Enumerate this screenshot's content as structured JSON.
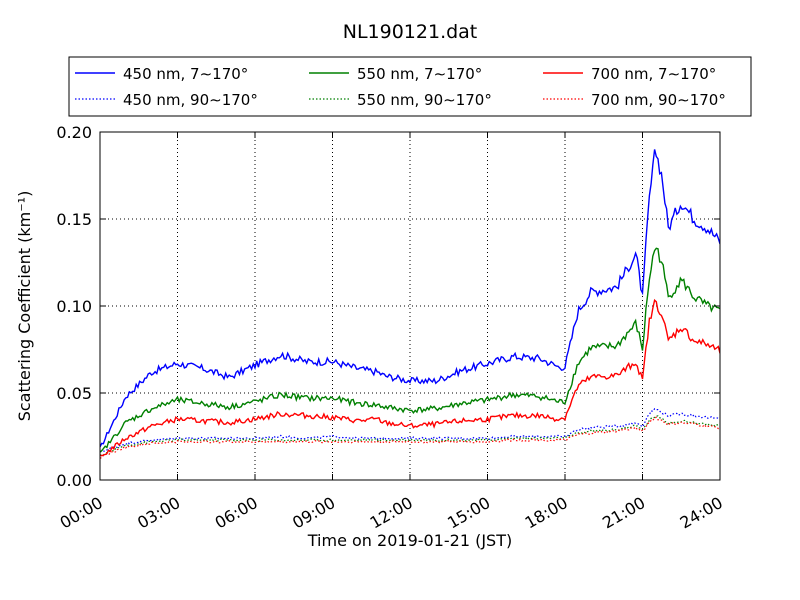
{
  "chart_data": {
    "type": "line",
    "title": "NL190121.dat",
    "xlabel": "Time on 2019-01-21 (JST)",
    "ylabel": "Scattering Coefficient (km⁻¹)",
    "x_ticks": [
      "00:00",
      "03:00",
      "06:00",
      "09:00",
      "12:00",
      "15:00",
      "18:00",
      "21:00",
      "24:00"
    ],
    "y_ticks": [
      "0.00",
      "0.05",
      "0.10",
      "0.15",
      "0.20"
    ],
    "xlim": [
      "00:00",
      "24:00"
    ],
    "ylim": [
      0.0,
      0.2
    ],
    "grid": true,
    "legend_position": "top",
    "x": [
      "00:00",
      "01:00",
      "02:00",
      "03:00",
      "04:00",
      "05:00",
      "06:00",
      "07:00",
      "08:00",
      "09:00",
      "10:00",
      "10:45",
      "11:00",
      "12:00",
      "13:00",
      "14:00",
      "15:00",
      "16:00",
      "17:00",
      "17:45",
      "18:00",
      "18:30",
      "19:00",
      "20:00",
      "20:45",
      "21:00",
      "21:15",
      "21:30",
      "21:45",
      "22:00",
      "22:30",
      "23:00",
      "23:30",
      "24:00"
    ],
    "series": [
      {
        "name": "450 nm, 7∼170°",
        "color": "#0000ff",
        "style": "solid",
        "values": [
          0.018,
          0.048,
          0.062,
          0.067,
          0.064,
          0.059,
          0.066,
          0.072,
          0.068,
          0.068,
          0.064,
          0.062,
          0.06,
          0.057,
          0.057,
          0.063,
          0.067,
          0.071,
          0.07,
          0.065,
          0.065,
          0.097,
          0.108,
          0.111,
          0.13,
          0.105,
          0.16,
          0.19,
          0.175,
          0.145,
          0.16,
          0.15,
          0.145,
          0.137
        ]
      },
      {
        "name": "450 nm, 90∼170°",
        "color": "#0000ff",
        "style": "dotted",
        "values": [
          0.016,
          0.021,
          0.023,
          0.024,
          0.024,
          0.024,
          0.024,
          0.025,
          0.024,
          0.025,
          0.024,
          0.024,
          0.024,
          0.024,
          0.024,
          0.024,
          0.024,
          0.025,
          0.025,
          0.025,
          0.025,
          0.029,
          0.03,
          0.031,
          0.033,
          0.031,
          0.038,
          0.041,
          0.039,
          0.037,
          0.038,
          0.037,
          0.036,
          0.035
        ]
      },
      {
        "name": "550 nm, 7∼170°",
        "color": "#008000",
        "style": "solid",
        "values": [
          0.015,
          0.033,
          0.041,
          0.046,
          0.044,
          0.042,
          0.045,
          0.049,
          0.047,
          0.047,
          0.044,
          0.043,
          0.042,
          0.04,
          0.041,
          0.044,
          0.046,
          0.049,
          0.048,
          0.045,
          0.045,
          0.067,
          0.076,
          0.077,
          0.09,
          0.075,
          0.115,
          0.135,
          0.125,
          0.105,
          0.115,
          0.105,
          0.1,
          0.097
        ]
      },
      {
        "name": "550 nm, 90∼170°",
        "color": "#008000",
        "style": "dotted",
        "values": [
          0.014,
          0.02,
          0.022,
          0.023,
          0.023,
          0.023,
          0.023,
          0.023,
          0.023,
          0.023,
          0.023,
          0.023,
          0.023,
          0.023,
          0.023,
          0.023,
          0.023,
          0.024,
          0.024,
          0.024,
          0.024,
          0.027,
          0.028,
          0.029,
          0.031,
          0.029,
          0.034,
          0.037,
          0.035,
          0.033,
          0.034,
          0.033,
          0.032,
          0.031
        ]
      },
      {
        "name": "700 nm, 7∼170°",
        "color": "#ff0000",
        "style": "solid",
        "values": [
          0.013,
          0.024,
          0.031,
          0.035,
          0.034,
          0.033,
          0.035,
          0.038,
          0.037,
          0.036,
          0.034,
          0.035,
          0.033,
          0.031,
          0.032,
          0.034,
          0.035,
          0.037,
          0.037,
          0.035,
          0.036,
          0.054,
          0.059,
          0.06,
          0.068,
          0.057,
          0.09,
          0.103,
          0.095,
          0.08,
          0.088,
          0.08,
          0.078,
          0.074
        ]
      },
      {
        "name": "700 nm, 90∼170°",
        "color": "#ff0000",
        "style": "dotted",
        "values": [
          0.013,
          0.019,
          0.021,
          0.022,
          0.022,
          0.022,
          0.022,
          0.022,
          0.022,
          0.022,
          0.022,
          0.022,
          0.022,
          0.022,
          0.022,
          0.022,
          0.022,
          0.023,
          0.023,
          0.023,
          0.023,
          0.026,
          0.027,
          0.028,
          0.03,
          0.028,
          0.033,
          0.036,
          0.034,
          0.032,
          0.033,
          0.032,
          0.031,
          0.03
        ]
      }
    ]
  }
}
